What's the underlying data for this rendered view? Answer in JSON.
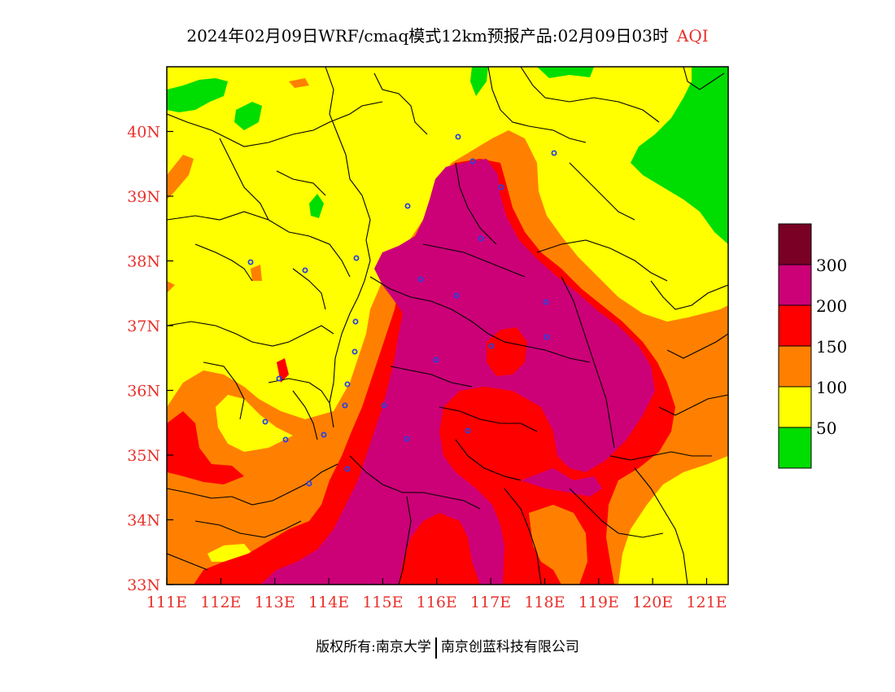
{
  "title": {
    "main": "2024年02月09日WRF/cmaq模式12km预报产品:02月09日03时",
    "variable": "AQI"
  },
  "axes": {
    "lon_labels": [
      "111E",
      "112E",
      "113E",
      "114E",
      "115E",
      "116E",
      "117E",
      "118E",
      "119E",
      "120E",
      "121E"
    ],
    "lat_labels": [
      "33N",
      "34N",
      "35N",
      "36N",
      "37N",
      "38N",
      "39N",
      "40N"
    ],
    "lon_range": [
      111,
      121.4
    ],
    "lat_range": [
      33,
      41
    ]
  },
  "legend": {
    "colors": [
      "#00dd00",
      "#ffff00",
      "#ff8000",
      "#ff0000",
      "#cc0077",
      "#7a0025"
    ],
    "labels": [
      "50",
      "100",
      "150",
      "200",
      "300"
    ]
  },
  "colors": {
    "tick_label": "#e8312b",
    "station_marker": "#2a44e0",
    "boundary": "#000000"
  },
  "credit": {
    "left": "版权所有:南京大学",
    "right": "南京创蓝科技有限公司"
  }
}
